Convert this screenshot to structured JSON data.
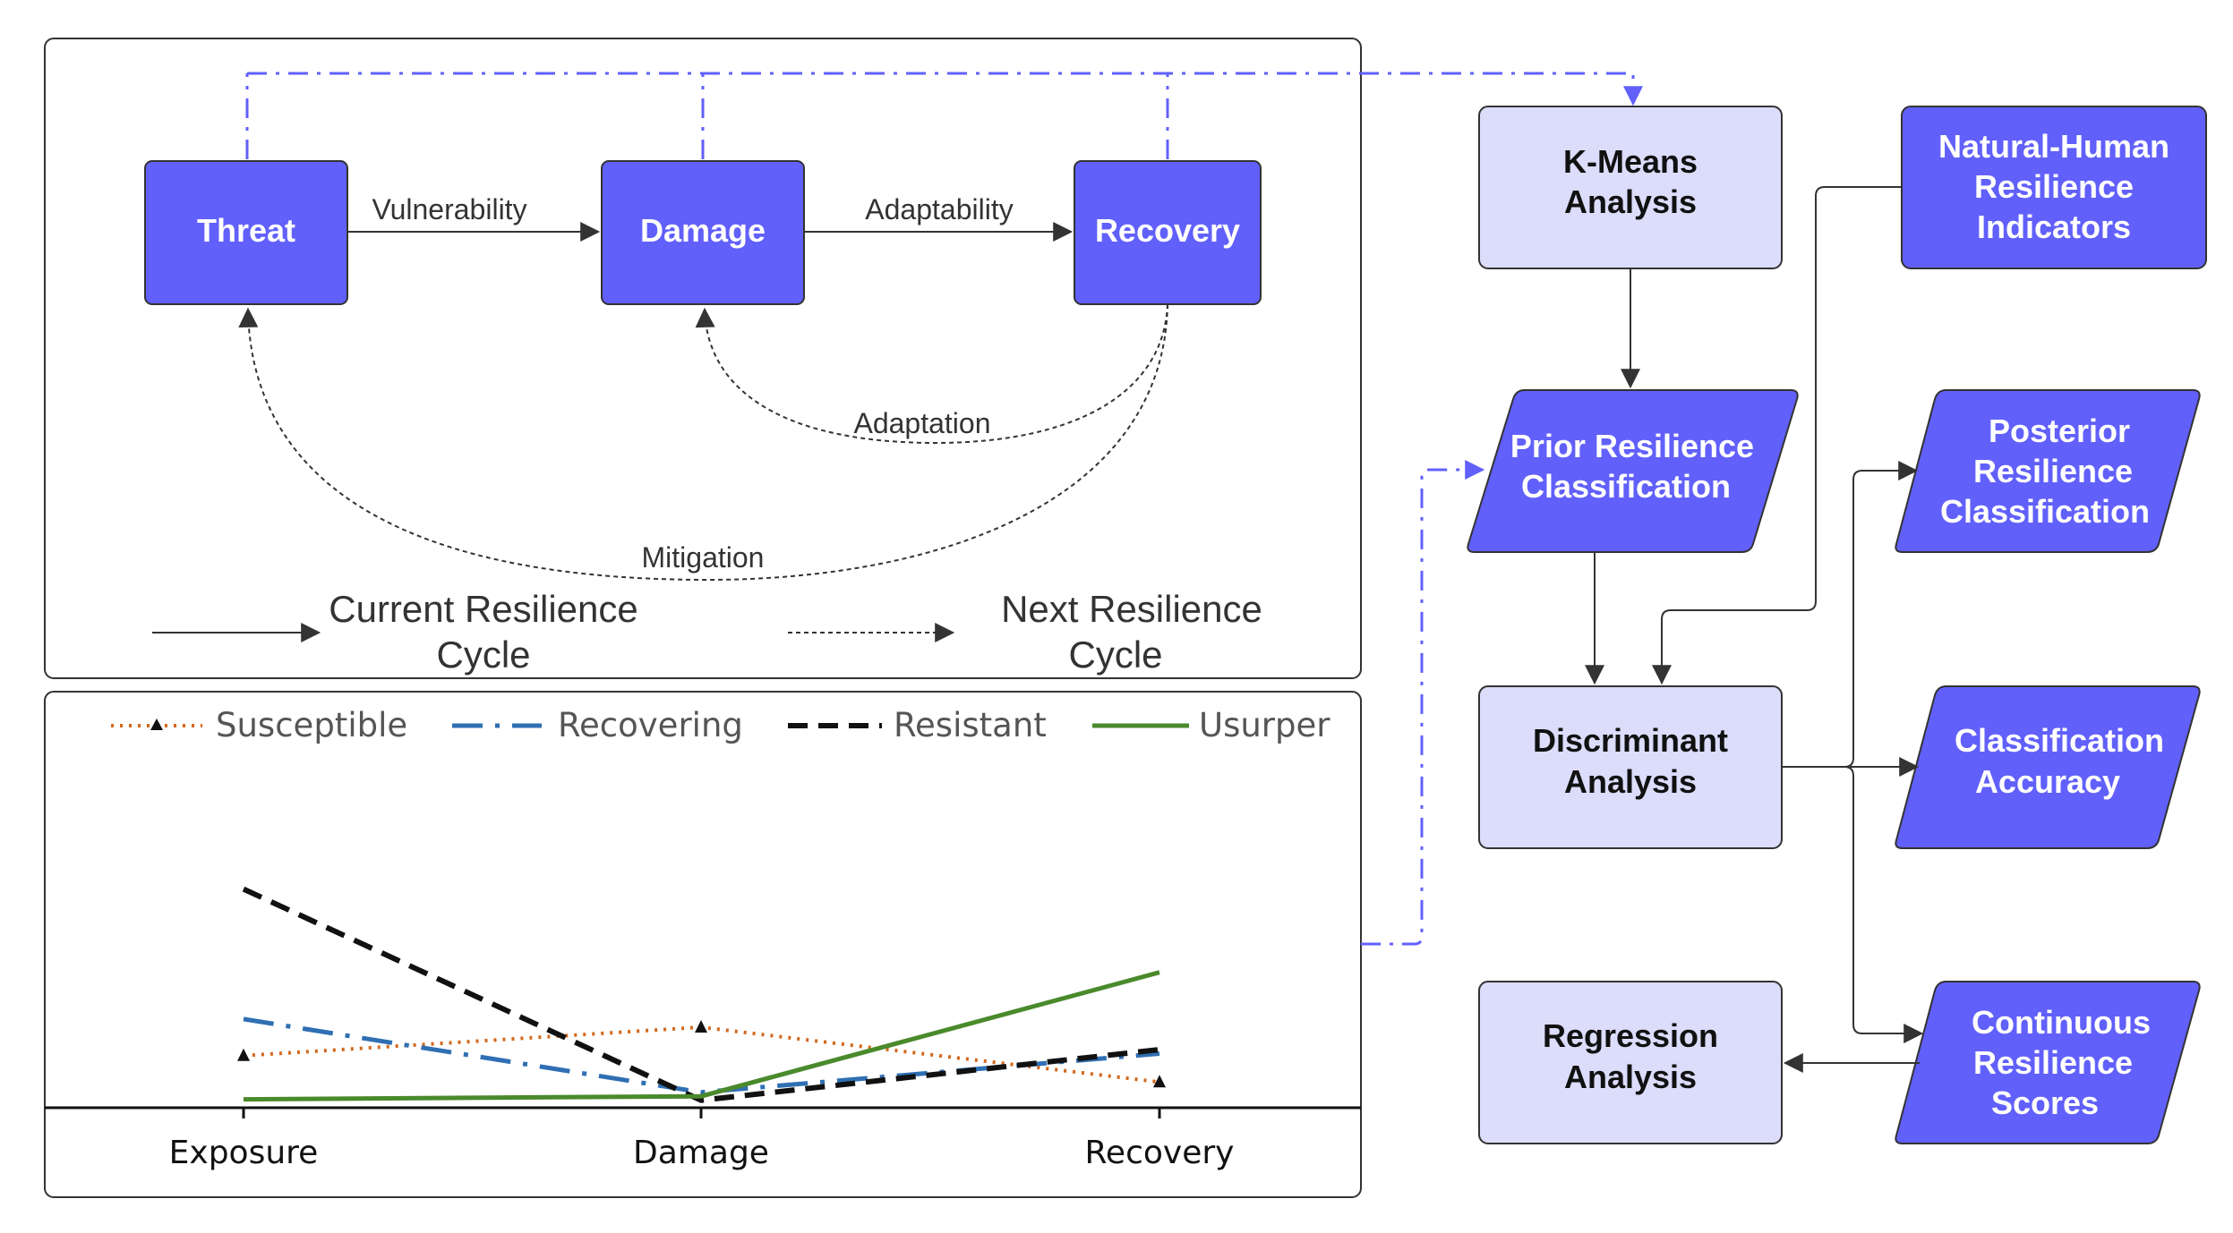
{
  "colors": {
    "accent": "#6160fb",
    "light_box": "#dcdcfb",
    "susceptible": "#d2691e",
    "recovering": "#2f6fb3",
    "resistant": "#111111",
    "usurper": "#4a8a2c"
  },
  "cycle_panel": {
    "nodes": {
      "threat": "Threat",
      "damage": "Damage",
      "recovery": "Recovery"
    },
    "edges": {
      "vulnerability": "Vulnerability",
      "adaptability": "Adaptability",
      "adaptation": "Adaptation",
      "mitigation": "Mitigation"
    },
    "legend": {
      "current_line1": "Current Resilience",
      "current_line2": "Cycle",
      "next_line1": "Next Resilience",
      "next_line2": "Cycle"
    }
  },
  "flow": {
    "kmeans": [
      "K-Means",
      "Analysis"
    ],
    "indicators": [
      "Natural-Human",
      "Resilience",
      "Indicators"
    ],
    "prior": [
      "Prior Resilience",
      "Classification"
    ],
    "posterior": [
      "Posterior",
      "Resilience",
      "Classification"
    ],
    "discriminant": [
      "Discriminant",
      "Analysis"
    ],
    "accuracy": [
      "Classification",
      "Accuracy"
    ],
    "regression": [
      "Regression",
      "Analysis"
    ],
    "continuous": [
      "Continuous",
      "Resilience",
      "Scores"
    ]
  },
  "chart_data": {
    "type": "line",
    "categories": [
      "Exposure",
      "Damage",
      "Recovery"
    ],
    "ylim": [
      0,
      10
    ],
    "legend_position": "top",
    "grid": false,
    "series": [
      {
        "name": "Susceptible",
        "values": [
          2.3,
          3.7,
          1.0
        ],
        "style": "dotted",
        "marker": "triangle",
        "color": "#d2691e"
      },
      {
        "name": "Recovering",
        "values": [
          4.1,
          0.5,
          2.4
        ],
        "style": "dashdot",
        "marker": "none",
        "color": "#2f6fb3"
      },
      {
        "name": "Resistant",
        "values": [
          10.5,
          0.1,
          2.6
        ],
        "style": "dashed",
        "marker": "none",
        "color": "#111111"
      },
      {
        "name": "Usurper",
        "values": [
          0.15,
          0.3,
          6.4
        ],
        "style": "solid",
        "marker": "none",
        "color": "#4a8a2c"
      }
    ]
  }
}
